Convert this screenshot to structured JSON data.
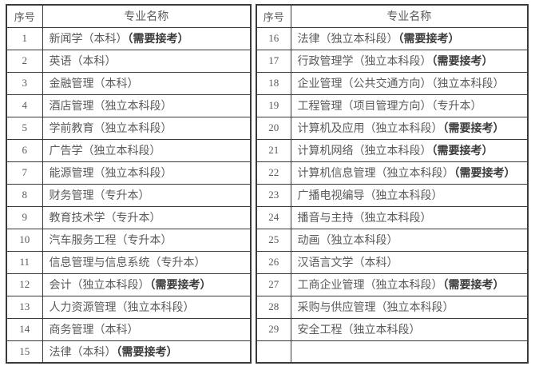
{
  "page": {
    "background": "#ffffff",
    "border_color": "#3a3a3a",
    "text_color": "#5a5a5a",
    "bold_note_color": "#3b3b3b"
  },
  "tables": [
    {
      "id": "left",
      "headers": {
        "no": "序号",
        "name": "专业名称"
      },
      "rows": [
        {
          "no": "1",
          "name": "新闻学（本科）",
          "note": "（需要接考）"
        },
        {
          "no": "2",
          "name": "英语（本科）",
          "note": ""
        },
        {
          "no": "3",
          "name": "金融管理（本科）",
          "note": ""
        },
        {
          "no": "4",
          "name": "酒店管理（独立本科段）",
          "note": ""
        },
        {
          "no": "5",
          "name": "学前教育（独立本科段）",
          "note": ""
        },
        {
          "no": "6",
          "name": "广告学（独立本科段）",
          "note": ""
        },
        {
          "no": "7",
          "name": "能源管理（独立本科段）",
          "note": ""
        },
        {
          "no": "8",
          "name": "财务管理（专升本）",
          "note": ""
        },
        {
          "no": "9",
          "name": "教育技术学（专升本）",
          "note": ""
        },
        {
          "no": "10",
          "name": "汽车服务工程（专升本）",
          "note": ""
        },
        {
          "no": "11",
          "name": "信息管理与信息系统（专升本）",
          "note": ""
        },
        {
          "no": "12",
          "name": "会计（独立本科段）",
          "note": "（需要接考）"
        },
        {
          "no": "13",
          "name": "人力资源管理（独立本科段）",
          "note": ""
        },
        {
          "no": "14",
          "name": "商务管理（本科）",
          "note": ""
        },
        {
          "no": "15",
          "name": "法律（本科）",
          "note": "（需要接考）"
        }
      ]
    },
    {
      "id": "right",
      "headers": {
        "no": "序号",
        "name": "专业名称"
      },
      "rows": [
        {
          "no": "16",
          "name": "法律（独立本科段）",
          "note": "（需要接考）"
        },
        {
          "no": "17",
          "name": "行政管理学（独立本科段）",
          "note": "（需要接考）"
        },
        {
          "no": "18",
          "name": "企业管理（公共交通方向）（独立本科段）",
          "note": ""
        },
        {
          "no": "19",
          "name": "工程管理（项目管理方向）（专升本）",
          "note": ""
        },
        {
          "no": "20",
          "name": "计算机及应用（独立本科段）",
          "note": "（需要接考）"
        },
        {
          "no": "21",
          "name": "计算机网络（独立本科段）",
          "note": "（需要接考）"
        },
        {
          "no": "22",
          "name": "计算机信息管理（独立本科段）",
          "note": "（需要接考）"
        },
        {
          "no": "23",
          "name": "广播电视编导（独立本科段）",
          "note": ""
        },
        {
          "no": "24",
          "name": "播音与主持（独立本科段）",
          "note": ""
        },
        {
          "no": "25",
          "name": "动画（独立本科段）",
          "note": ""
        },
        {
          "no": "26",
          "name": "汉语言文学（本科）",
          "note": ""
        },
        {
          "no": "27",
          "name": "工商企业管理（独立本科段）",
          "note": "（需要接考）"
        },
        {
          "no": "28",
          "name": "采购与供应管理（独立本科段）",
          "note": ""
        },
        {
          "no": "29",
          "name": "安全工程（独立本科段）",
          "note": ""
        },
        {
          "no": "",
          "name": "",
          "note": ""
        }
      ]
    }
  ]
}
